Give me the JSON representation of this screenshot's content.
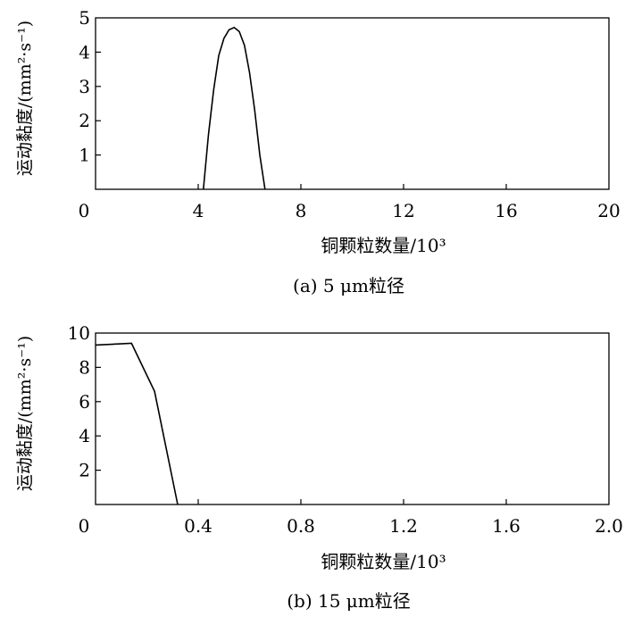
{
  "chart_data": [
    {
      "type": "line",
      "xlabel": "铜颗粒数量/10³",
      "ylabel": "运动黏度/(mm²·s⁻¹)",
      "caption": "(a) 5 μm粒径",
      "xlim": [
        0,
        20
      ],
      "ylim": [
        0,
        5
      ],
      "x_ticks": [
        0,
        4,
        8,
        12,
        16,
        20
      ],
      "x_tick_labels": [
        "0",
        "4",
        "8",
        "12",
        "16",
        "20"
      ],
      "y_ticks": [
        1,
        2,
        3,
        4,
        5
      ],
      "y_tick_labels": [
        "1",
        "2",
        "3",
        "4",
        "5"
      ],
      "grid": false,
      "series": [
        {
          "x": [
            4.2,
            4.4,
            4.6,
            4.8,
            5.0,
            5.2,
            5.4,
            5.6,
            5.8,
            6.0,
            6.2,
            6.4,
            6.6
          ],
          "y": [
            0,
            1.6,
            2.9,
            3.9,
            4.4,
            4.65,
            4.72,
            4.6,
            4.2,
            3.4,
            2.3,
            1.0,
            0
          ]
        }
      ]
    },
    {
      "type": "line",
      "xlabel": "铜颗粒数量/10³",
      "ylabel": "运动黏度/(mm²·s⁻¹)",
      "caption": "(b) 15 μm粒径",
      "xlim": [
        0,
        2.0
      ],
      "ylim": [
        0,
        10
      ],
      "x_ticks": [
        0,
        0.4,
        0.8,
        1.2,
        1.6,
        2.0
      ],
      "x_tick_labels": [
        "0",
        "0.4",
        "0.8",
        "1.2",
        "1.6",
        "2.0"
      ],
      "y_ticks": [
        2,
        4,
        6,
        8,
        10
      ],
      "y_tick_labels": [
        "2",
        "4",
        "6",
        "8",
        "10"
      ],
      "grid": false,
      "series": [
        {
          "x": [
            0,
            0.14,
            0.23,
            0.32
          ],
          "y": [
            9.3,
            9.4,
            6.6,
            0
          ]
        }
      ]
    }
  ]
}
